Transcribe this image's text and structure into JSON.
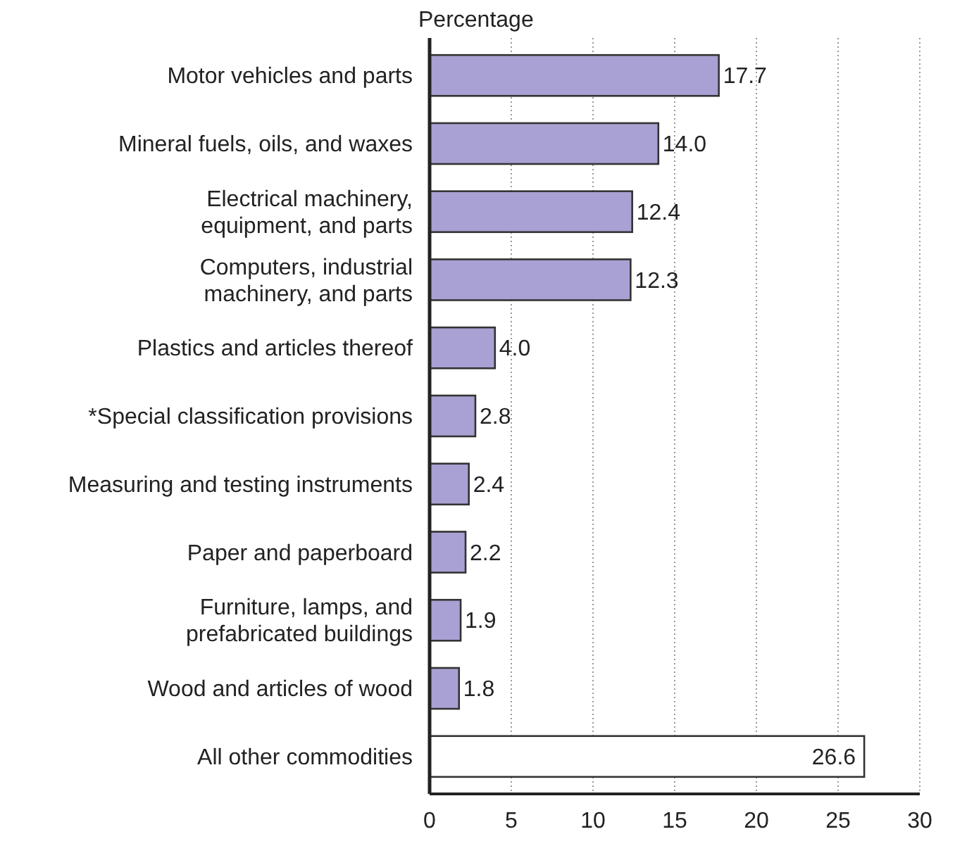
{
  "chart_data": {
    "type": "bar",
    "orientation": "horizontal",
    "xlabel": "Percentage",
    "categories": [
      "Motor vehicles and parts",
      "Mineral fuels, oils, and waxes",
      "Electrical machinery, equipment, and parts",
      "Computers, industrial machinery, and parts",
      "Plastics and articles thereof",
      "*Special classification provisions",
      "Measuring and testing instruments",
      "Paper and paperboard",
      "Furniture, lamps, and prefabricated buildings",
      "Wood and articles of wood",
      "All other commodities"
    ],
    "values": [
      17.7,
      14.0,
      12.4,
      12.3,
      4.0,
      2.8,
      2.4,
      2.2,
      1.9,
      1.8,
      26.6
    ],
    "colors": [
      "#a9a1d3",
      "#a9a1d3",
      "#a9a1d3",
      "#a9a1d3",
      "#a9a1d3",
      "#a9a1d3",
      "#a9a1d3",
      "#a9a1d3",
      "#a9a1d3",
      "#a9a1d3",
      "#ffffff"
    ],
    "value_labels": [
      "17.7",
      "14.0",
      "12.4",
      "12.3",
      "4.0",
      "2.8",
      "2.4",
      "2.2",
      "1.9",
      "1.8",
      "26.6"
    ],
    "xlim": [
      0,
      30
    ],
    "xticks": [
      0,
      5,
      10,
      15,
      20,
      25,
      30
    ],
    "grid": "x"
  }
}
